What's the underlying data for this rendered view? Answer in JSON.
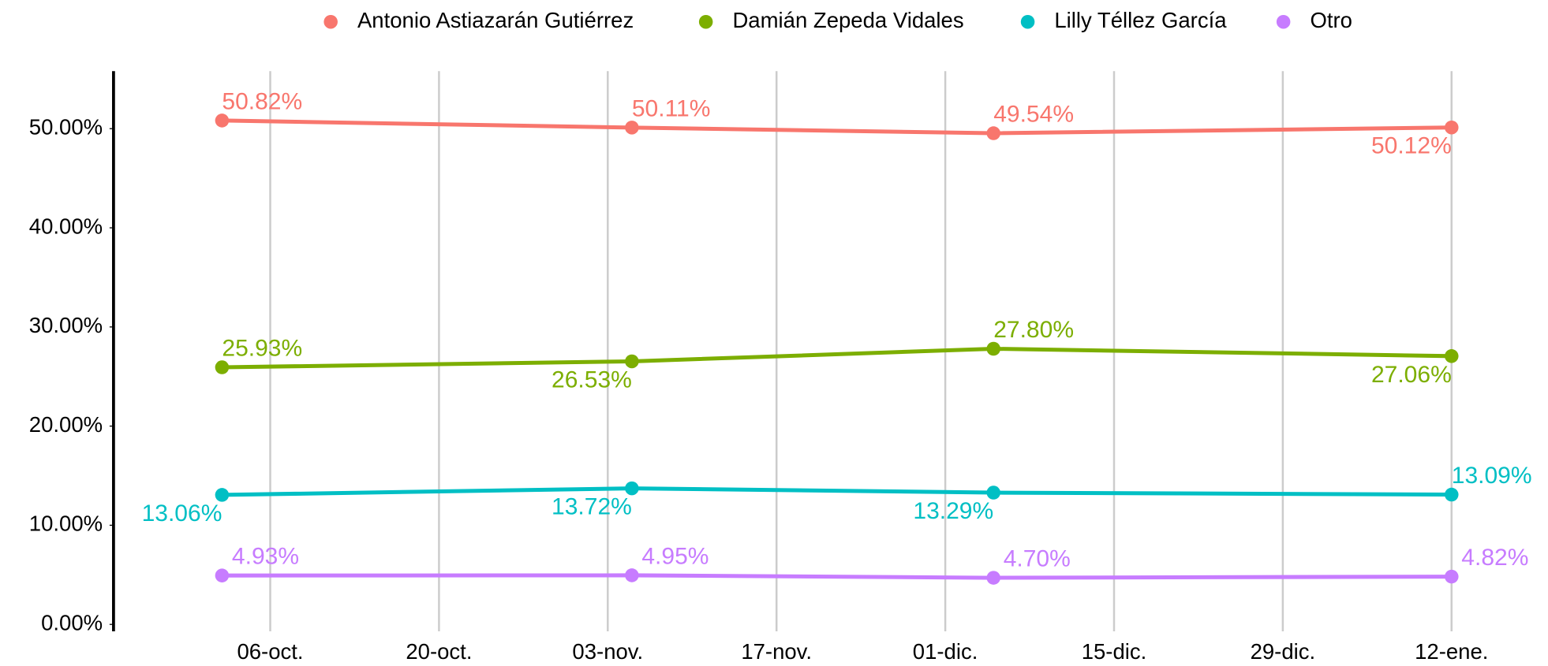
{
  "chart_data": {
    "type": "line",
    "x": [
      "02-oct.",
      "05-nov.",
      "05-dic.",
      "12-ene."
    ],
    "series": [
      {
        "name": "Antonio Astiazarán Gutiérrez",
        "color": "#F8766D",
        "values": [
          50.82,
          50.11,
          49.54,
          50.12
        ],
        "value_labels": [
          "50.82%",
          "50.11%",
          "49.54%",
          "50.12%"
        ]
      },
      {
        "name": "Damián Zepeda Vidales",
        "color": "#7CAE00",
        "values": [
          25.93,
          26.53,
          27.8,
          27.06
        ],
        "value_labels": [
          "25.93%",
          "26.53%",
          "27.80%",
          "27.06%"
        ]
      },
      {
        "name": "Lilly Téllez García",
        "color": "#00BFC4",
        "values": [
          13.06,
          13.72,
          13.29,
          13.09
        ],
        "value_labels": [
          "13.06%",
          "13.72%",
          "13.29%",
          "13.09%"
        ]
      },
      {
        "name": "Otro",
        "color": "#C77CFF",
        "values": [
          4.93,
          4.95,
          4.7,
          4.82
        ],
        "value_labels": [
          "4.93%",
          "4.95%",
          "4.70%",
          "4.82%"
        ]
      }
    ],
    "xlim": [
      "23-sep.",
      "20-ene."
    ],
    "xticks": [
      "06-oct.",
      "20-oct.",
      "03-nov.",
      "17-nov.",
      "01-dic.",
      "15-dic.",
      "29-dic.",
      "12-ene."
    ],
    "ylim": [
      -0.7,
      55.8
    ],
    "yticks": [
      {
        "value": 0,
        "label": "0.00%"
      },
      {
        "value": 10,
        "label": "10.00%"
      },
      {
        "value": 20,
        "label": "20.00%"
      },
      {
        "value": 30,
        "label": "30.00%"
      },
      {
        "value": 40,
        "label": "40.00%"
      },
      {
        "value": 50,
        "label": "50.00%"
      }
    ],
    "grid": "x",
    "legend": "top"
  }
}
